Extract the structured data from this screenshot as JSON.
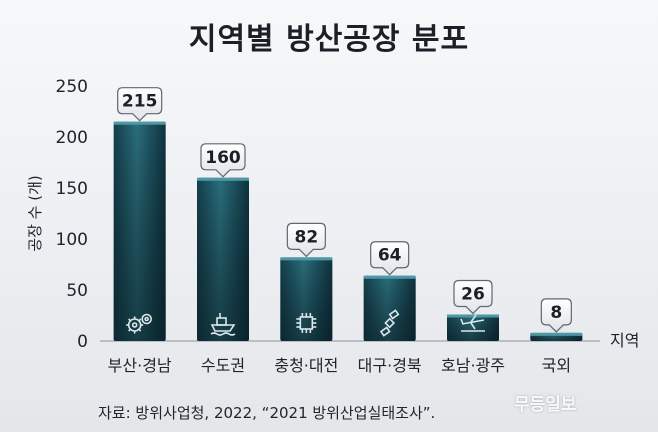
{
  "title": "지역별 방산공장 분포",
  "source": "자료: 방위사업청, 2022, “2021 방위산업실태조사”.",
  "watermark": "무등일보",
  "chart_data": {
    "type": "bar",
    "title": "지역별 방산공장 분포",
    "ylabel": "공장 수 (개)",
    "xlabel": "지역",
    "ylim": [
      0,
      250
    ],
    "yticks": [
      0,
      50,
      100,
      150,
      200,
      250
    ],
    "categories": [
      "부산·경남",
      "수도권",
      "충청·대전",
      "대구·경북",
      "호남·광주",
      "국외"
    ],
    "values": [
      215,
      160,
      82,
      64,
      26,
      8
    ],
    "icons": [
      "gears-icon",
      "ship-icon",
      "chip-icon",
      "satellite-icon",
      "airplane-icon",
      "globe-icon"
    ],
    "bar_color": "#1e5866",
    "grid": false
  }
}
